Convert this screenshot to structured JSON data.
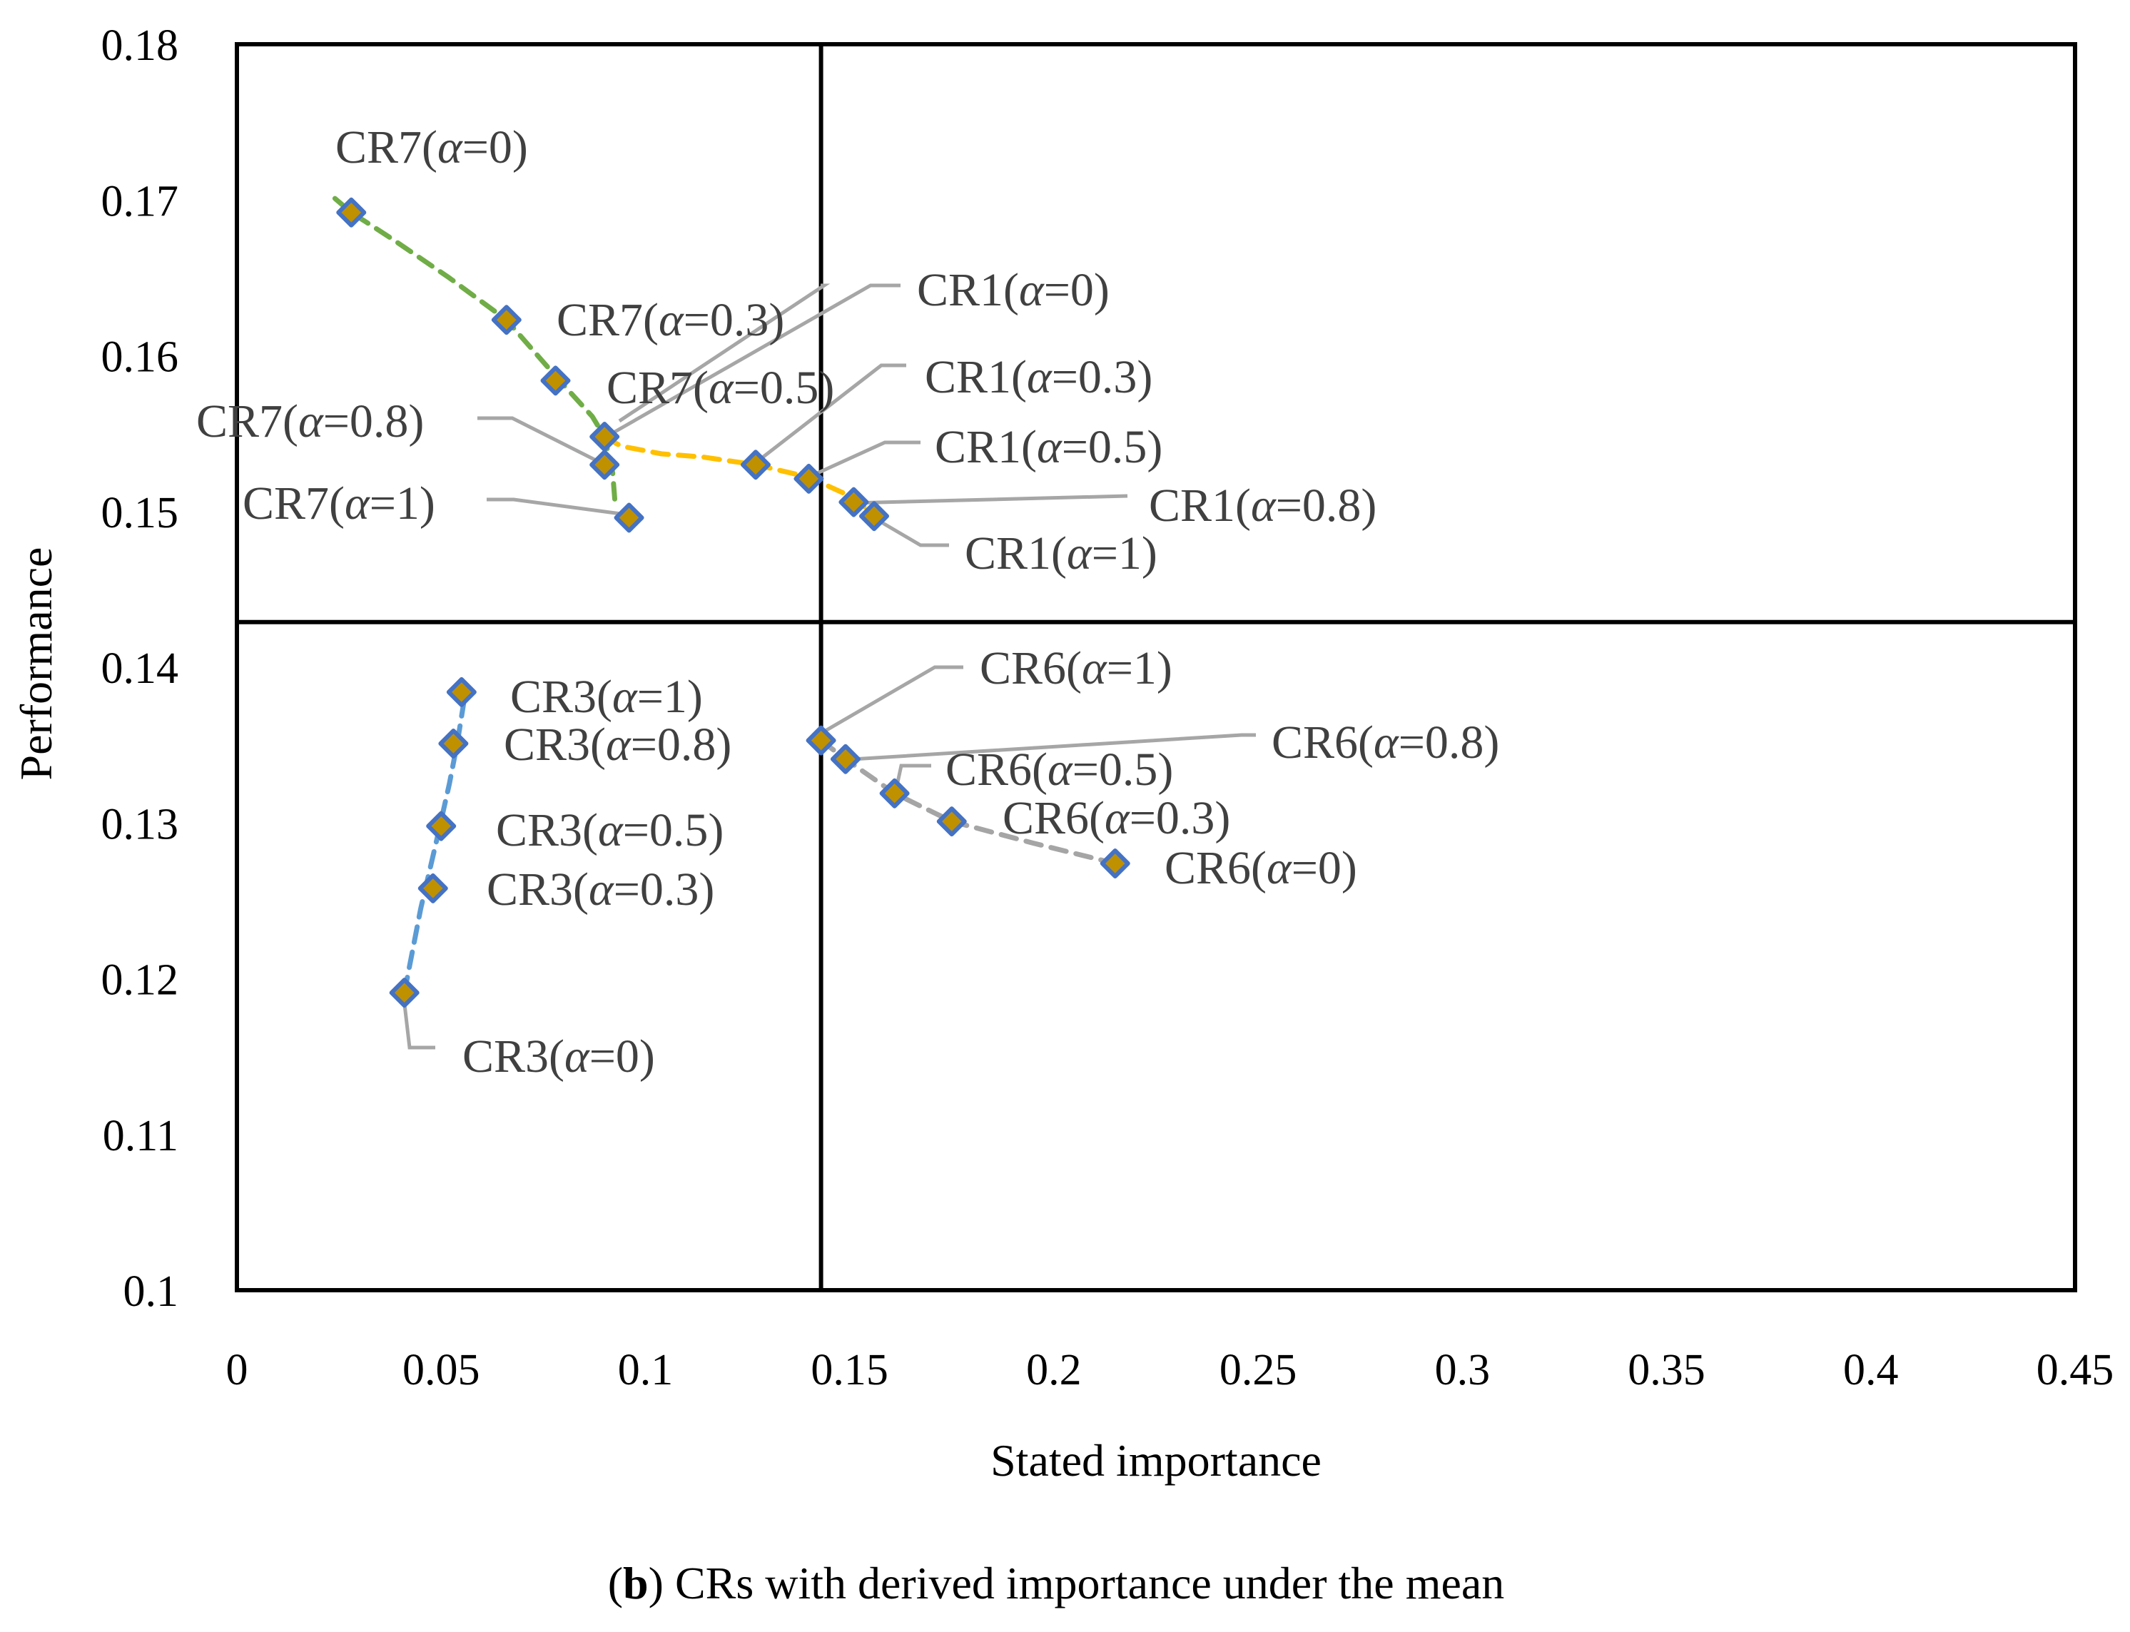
{
  "chart_data": {
    "type": "scatter",
    "title": "",
    "xlabel": "Stated importance",
    "ylabel": "Performance",
    "xlim": [
      0,
      0.45
    ],
    "ylim": [
      0.1,
      0.18
    ],
    "x_ticks": [
      "0",
      "0.05",
      "0.1",
      "0.15",
      "0.2",
      "0.25",
      "0.3",
      "0.35",
      "0.4",
      "0.45"
    ],
    "y_ticks": [
      "0.1",
      "0.11",
      "0.12",
      "0.13",
      "0.14",
      "0.15",
      "0.16",
      "0.17",
      "0.18"
    ],
    "grid": false,
    "quadrant_lines": {
      "x": 0.143,
      "y": 0.1429
    },
    "colors": {
      "marker_fill": "#BF9000",
      "marker_edge": "#4472C4",
      "leader": "#A6A6A6",
      "label_text": "#404040",
      "frame": "#000000"
    },
    "series": [
      {
        "name": "CR7",
        "color": "#70AD47",
        "curve": [
          [
            0.024,
            0.1701
          ],
          [
            0.028,
            0.1692
          ],
          [
            0.038,
            0.1675
          ],
          [
            0.052,
            0.165
          ],
          [
            0.066,
            0.1623
          ],
          [
            0.079,
            0.1584
          ],
          [
            0.087,
            0.1561
          ],
          [
            0.09,
            0.1548
          ],
          [
            0.092,
            0.1525
          ],
          [
            0.0925,
            0.1508
          ]
        ],
        "points": [
          {
            "x": 0.028,
            "y": 0.1692,
            "label": "CR7(α=0)"
          },
          {
            "x": 0.066,
            "y": 0.1623,
            "label": "CR7(α=0.3)"
          },
          {
            "x": 0.078,
            "y": 0.1584,
            "label": "CR7(α=0.5)"
          },
          {
            "x": 0.09,
            "y": 0.153,
            "label": "CR7(α=0.8)"
          },
          {
            "x": 0.096,
            "y": 0.1496,
            "label": "CR7(α=1)"
          }
        ]
      },
      {
        "name": "CR1",
        "color": "#FFC000",
        "curve": [
          [
            0.09,
            0.1548
          ],
          [
            0.094,
            0.1542
          ],
          [
            0.104,
            0.1537
          ],
          [
            0.114,
            0.1535
          ],
          [
            0.127,
            0.153
          ],
          [
            0.14,
            0.1522
          ],
          [
            0.15,
            0.151
          ],
          [
            0.156,
            0.1498
          ]
        ],
        "points": [
          {
            "x": 0.09,
            "y": 0.1548,
            "label": "CR1(α=0)"
          },
          {
            "x": 0.127,
            "y": 0.153,
            "label": "CR1(α=0.3)"
          },
          {
            "x": 0.14,
            "y": 0.1521,
            "label": "CR1(α=0.5)"
          },
          {
            "x": 0.151,
            "y": 0.1506,
            "label": "CR1(α=0.8)"
          },
          {
            "x": 0.156,
            "y": 0.1497,
            "label": "CR1(α=1)"
          }
        ]
      },
      {
        "name": "CR3",
        "color": "#5B9BD5",
        "curve": [
          [
            0.041,
            0.1191
          ],
          [
            0.045,
            0.1245
          ],
          [
            0.049,
            0.129
          ],
          [
            0.052,
            0.1325
          ],
          [
            0.054,
            0.1352
          ],
          [
            0.056,
            0.1385
          ]
        ],
        "points": [
          {
            "x": 0.041,
            "y": 0.1191,
            "label": "CR3(α=0)"
          },
          {
            "x": 0.048,
            "y": 0.1258,
            "label": "CR3(α=0.3)"
          },
          {
            "x": 0.05,
            "y": 0.1298,
            "label": "CR3(α=0.5)"
          },
          {
            "x": 0.053,
            "y": 0.1351,
            "label": "CR3(α=0.8)"
          },
          {
            "x": 0.055,
            "y": 0.1384,
            "label": "CR3(α=1)"
          }
        ]
      },
      {
        "name": "CR6",
        "color": "#A5A5A5",
        "curve": [
          [
            0.143,
            0.1353
          ],
          [
            0.149,
            0.1341
          ],
          [
            0.161,
            0.1319
          ],
          [
            0.175,
            0.1301
          ],
          [
            0.195,
            0.1287
          ],
          [
            0.215,
            0.1274
          ]
        ],
        "points": [
          {
            "x": 0.215,
            "y": 0.1274,
            "label": "CR6(α=0)"
          },
          {
            "x": 0.175,
            "y": 0.1301,
            "label": "CR6(α=0.3)"
          },
          {
            "x": 0.161,
            "y": 0.1319,
            "label": "CR6(α=0.5)"
          },
          {
            "x": 0.149,
            "y": 0.1341,
            "label": "CR6(α=0.8)"
          },
          {
            "x": 0.143,
            "y": 0.1353,
            "label": "CR6(α=1)"
          }
        ]
      }
    ],
    "caption": {
      "open": "(",
      "bold": "b",
      "rest": ") CRs with derived importance under the mean"
    }
  }
}
